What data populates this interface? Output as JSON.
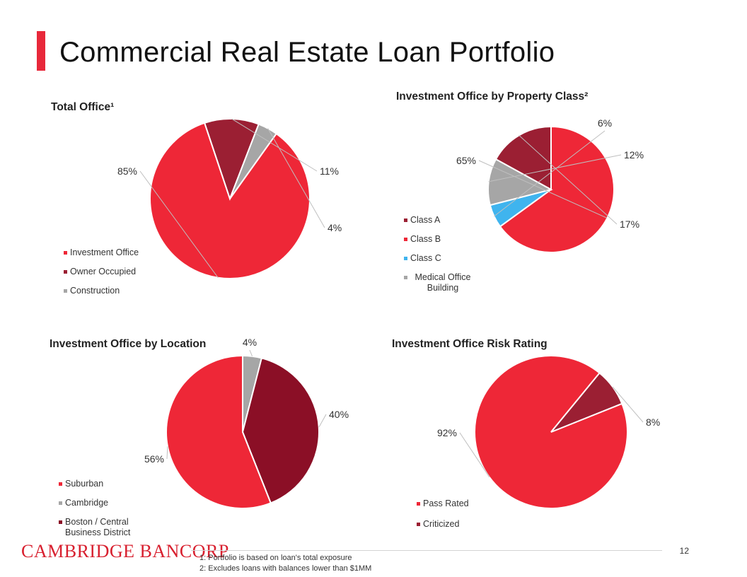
{
  "page": {
    "title": "Commercial Real Estate Loan Portfolio",
    "brand": "Cambridge Bancorp",
    "page_number": "12",
    "footnotes": [
      "1: Portfolio is based on loan's total exposure",
      "2: Excludes loans with balances lower than $1MM"
    ]
  },
  "chart_data": [
    {
      "type": "pie",
      "title": "Total Office¹",
      "legend_position": "bottom-left",
      "slices": [
        {
          "label": "Investment Office",
          "value": 85,
          "display": "85%",
          "color": "#ee2737"
        },
        {
          "label": "Owner Occupied",
          "value": 11,
          "display": "11%",
          "color": "#9b1f33"
        },
        {
          "label": "Construction",
          "value": 4,
          "display": "4%",
          "color": "#a6a6a6"
        }
      ]
    },
    {
      "type": "pie",
      "title": "Investment Office by Property Class²",
      "legend_position": "left",
      "slices": [
        {
          "label": "Class A",
          "value": 17,
          "display": "17%",
          "color": "#9b1f33"
        },
        {
          "label": "Class B",
          "value": 65,
          "display": "65%",
          "color": "#ee2737"
        },
        {
          "label": "Class C",
          "value": 6,
          "display": "6%",
          "color": "#3fb4ee"
        },
        {
          "label": "Medical Office Building",
          "value": 12,
          "display": "12%",
          "color": "#a6a6a6"
        }
      ]
    },
    {
      "type": "pie",
      "title": "Investment Office by Location",
      "legend_position": "bottom-left",
      "slices": [
        {
          "label": "Suburban",
          "value": 56,
          "display": "56%",
          "color": "#ee2737"
        },
        {
          "label": "Cambridge",
          "value": 4,
          "display": "4%",
          "color": "#a6a6a6"
        },
        {
          "label": "Boston / Central Business District",
          "value": 40,
          "display": "40%",
          "color": "#8b0f26"
        }
      ]
    },
    {
      "type": "pie",
      "title": "Investment Office Risk Rating",
      "legend_position": "bottom-left",
      "slices": [
        {
          "label": "Pass Rated",
          "value": 92,
          "display": "92%",
          "color": "#ee2737"
        },
        {
          "label": "Criticized",
          "value": 8,
          "display": "8%",
          "color": "#9b1f33"
        }
      ]
    }
  ]
}
